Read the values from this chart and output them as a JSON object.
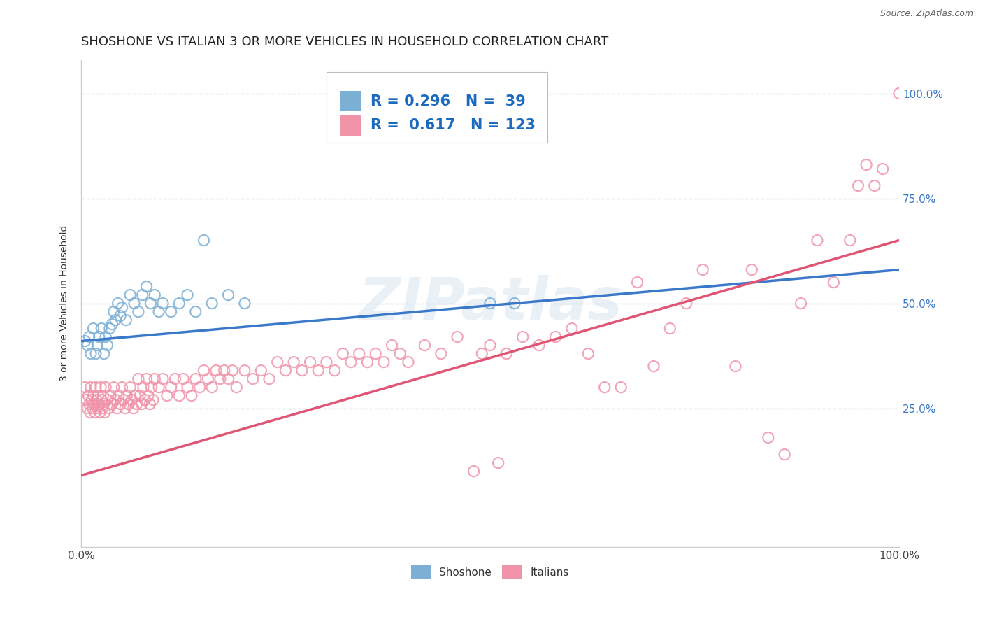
{
  "title": "SHOSHONE VS ITALIAN 3 OR MORE VEHICLES IN HOUSEHOLD CORRELATION CHART",
  "source_text": "Source: ZipAtlas.com",
  "ylabel": "3 or more Vehicles in Household",
  "xlim": [
    0.0,
    1.0
  ],
  "ylim": [
    -0.08,
    1.08
  ],
  "x_tick_positions": [
    0.0,
    1.0
  ],
  "x_tick_labels": [
    "0.0%",
    "100.0%"
  ],
  "y_tick_positions": [
    0.25,
    0.5,
    0.75,
    1.0
  ],
  "y_tick_labels": [
    "25.0%",
    "50.0%",
    "75.0%",
    "100.0%"
  ],
  "shoshone_color": "#7bafd4",
  "italian_color": "#f093a8",
  "shoshone_line_color": "#3a78c9",
  "italian_line_color": "#e05575",
  "watermark": "ZIPatlas",
  "background_color": "#ffffff",
  "grid_color": "#c8d4e0",
  "title_fontsize": 13,
  "axis_label_fontsize": 10,
  "tick_fontsize": 11,
  "legend_fontsize": 15,
  "shoshone_points": [
    [
      0.005,
      0.41
    ],
    [
      0.008,
      0.4
    ],
    [
      0.01,
      0.42
    ],
    [
      0.012,
      0.38
    ],
    [
      0.015,
      0.44
    ],
    [
      0.018,
      0.38
    ],
    [
      0.02,
      0.4
    ],
    [
      0.022,
      0.42
    ],
    [
      0.025,
      0.44
    ],
    [
      0.028,
      0.38
    ],
    [
      0.03,
      0.42
    ],
    [
      0.032,
      0.4
    ],
    [
      0.035,
      0.44
    ],
    [
      0.038,
      0.45
    ],
    [
      0.04,
      0.48
    ],
    [
      0.042,
      0.46
    ],
    [
      0.045,
      0.5
    ],
    [
      0.048,
      0.47
    ],
    [
      0.05,
      0.49
    ],
    [
      0.055,
      0.46
    ],
    [
      0.06,
      0.52
    ],
    [
      0.065,
      0.5
    ],
    [
      0.07,
      0.48
    ],
    [
      0.075,
      0.52
    ],
    [
      0.08,
      0.54
    ],
    [
      0.085,
      0.5
    ],
    [
      0.09,
      0.52
    ],
    [
      0.095,
      0.48
    ],
    [
      0.1,
      0.5
    ],
    [
      0.11,
      0.48
    ],
    [
      0.12,
      0.5
    ],
    [
      0.13,
      0.52
    ],
    [
      0.14,
      0.48
    ],
    [
      0.15,
      0.65
    ],
    [
      0.16,
      0.5
    ],
    [
      0.18,
      0.52
    ],
    [
      0.2,
      0.5
    ],
    [
      0.5,
      0.5
    ],
    [
      0.53,
      0.5
    ]
  ],
  "italian_points": [
    [
      0.005,
      0.3
    ],
    [
      0.007,
      0.27
    ],
    [
      0.008,
      0.25
    ],
    [
      0.009,
      0.28
    ],
    [
      0.01,
      0.26
    ],
    [
      0.011,
      0.24
    ],
    [
      0.012,
      0.3
    ],
    [
      0.013,
      0.27
    ],
    [
      0.014,
      0.25
    ],
    [
      0.015,
      0.28
    ],
    [
      0.016,
      0.26
    ],
    [
      0.017,
      0.24
    ],
    [
      0.018,
      0.3
    ],
    [
      0.019,
      0.27
    ],
    [
      0.02,
      0.25
    ],
    [
      0.021,
      0.28
    ],
    [
      0.022,
      0.26
    ],
    [
      0.023,
      0.24
    ],
    [
      0.024,
      0.3
    ],
    [
      0.025,
      0.27
    ],
    [
      0.026,
      0.25
    ],
    [
      0.027,
      0.28
    ],
    [
      0.028,
      0.26
    ],
    [
      0.029,
      0.24
    ],
    [
      0.03,
      0.3
    ],
    [
      0.032,
      0.27
    ],
    [
      0.034,
      0.25
    ],
    [
      0.036,
      0.28
    ],
    [
      0.038,
      0.26
    ],
    [
      0.04,
      0.3
    ],
    [
      0.042,
      0.27
    ],
    [
      0.044,
      0.25
    ],
    [
      0.046,
      0.28
    ],
    [
      0.048,
      0.26
    ],
    [
      0.05,
      0.3
    ],
    [
      0.052,
      0.27
    ],
    [
      0.054,
      0.25
    ],
    [
      0.056,
      0.28
    ],
    [
      0.058,
      0.26
    ],
    [
      0.06,
      0.3
    ],
    [
      0.062,
      0.27
    ],
    [
      0.064,
      0.25
    ],
    [
      0.066,
      0.28
    ],
    [
      0.068,
      0.26
    ],
    [
      0.07,
      0.32
    ],
    [
      0.072,
      0.28
    ],
    [
      0.074,
      0.26
    ],
    [
      0.076,
      0.3
    ],
    [
      0.078,
      0.27
    ],
    [
      0.08,
      0.32
    ],
    [
      0.082,
      0.28
    ],
    [
      0.084,
      0.26
    ],
    [
      0.086,
      0.3
    ],
    [
      0.088,
      0.27
    ],
    [
      0.09,
      0.32
    ],
    [
      0.095,
      0.3
    ],
    [
      0.1,
      0.32
    ],
    [
      0.105,
      0.28
    ],
    [
      0.11,
      0.3
    ],
    [
      0.115,
      0.32
    ],
    [
      0.12,
      0.28
    ],
    [
      0.125,
      0.32
    ],
    [
      0.13,
      0.3
    ],
    [
      0.135,
      0.28
    ],
    [
      0.14,
      0.32
    ],
    [
      0.145,
      0.3
    ],
    [
      0.15,
      0.34
    ],
    [
      0.155,
      0.32
    ],
    [
      0.16,
      0.3
    ],
    [
      0.165,
      0.34
    ],
    [
      0.17,
      0.32
    ],
    [
      0.175,
      0.34
    ],
    [
      0.18,
      0.32
    ],
    [
      0.185,
      0.34
    ],
    [
      0.19,
      0.3
    ],
    [
      0.2,
      0.34
    ],
    [
      0.21,
      0.32
    ],
    [
      0.22,
      0.34
    ],
    [
      0.23,
      0.32
    ],
    [
      0.24,
      0.36
    ],
    [
      0.25,
      0.34
    ],
    [
      0.26,
      0.36
    ],
    [
      0.27,
      0.34
    ],
    [
      0.28,
      0.36
    ],
    [
      0.29,
      0.34
    ],
    [
      0.3,
      0.36
    ],
    [
      0.31,
      0.34
    ],
    [
      0.32,
      0.38
    ],
    [
      0.33,
      0.36
    ],
    [
      0.34,
      0.38
    ],
    [
      0.35,
      0.36
    ],
    [
      0.36,
      0.38
    ],
    [
      0.37,
      0.36
    ],
    [
      0.38,
      0.4
    ],
    [
      0.39,
      0.38
    ],
    [
      0.4,
      0.36
    ],
    [
      0.42,
      0.4
    ],
    [
      0.44,
      0.38
    ],
    [
      0.46,
      0.42
    ],
    [
      0.48,
      0.1
    ],
    [
      0.49,
      0.38
    ],
    [
      0.5,
      0.4
    ],
    [
      0.51,
      0.12
    ],
    [
      0.52,
      0.38
    ],
    [
      0.54,
      0.42
    ],
    [
      0.56,
      0.4
    ],
    [
      0.58,
      0.42
    ],
    [
      0.6,
      0.44
    ],
    [
      0.62,
      0.38
    ],
    [
      0.64,
      0.3
    ],
    [
      0.66,
      0.3
    ],
    [
      0.68,
      0.55
    ],
    [
      0.7,
      0.35
    ],
    [
      0.72,
      0.44
    ],
    [
      0.74,
      0.5
    ],
    [
      0.76,
      0.58
    ],
    [
      0.8,
      0.35
    ],
    [
      0.82,
      0.58
    ],
    [
      0.84,
      0.18
    ],
    [
      0.86,
      0.14
    ],
    [
      0.88,
      0.5
    ],
    [
      0.9,
      0.65
    ],
    [
      0.92,
      0.55
    ],
    [
      0.94,
      0.65
    ],
    [
      0.95,
      0.78
    ],
    [
      0.96,
      0.83
    ],
    [
      0.97,
      0.78
    ],
    [
      0.98,
      0.82
    ],
    [
      1.0,
      1.0
    ]
  ]
}
